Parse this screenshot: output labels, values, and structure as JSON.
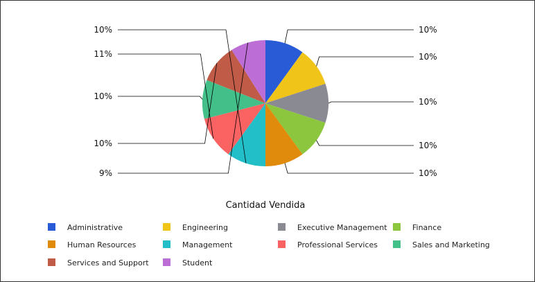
{
  "chart_data": {
    "type": "pie",
    "title": "Cantidad Vendida",
    "slices": [
      {
        "name": "Administrative",
        "value": 10,
        "label": "10%",
        "color": "#2a5bd7"
      },
      {
        "name": "Engineering",
        "value": 10,
        "label": "10%",
        "color": "#f0c419"
      },
      {
        "name": "Executive Management",
        "value": 10,
        "label": "10%",
        "color": "#8a8a93"
      },
      {
        "name": "Finance",
        "value": 10,
        "label": "10%",
        "color": "#8cc63e"
      },
      {
        "name": "Human Resources",
        "value": 10,
        "label": "10%",
        "color": "#e08b0c"
      },
      {
        "name": "Management",
        "value": 10,
        "label": "10%",
        "color": "#22bfc8"
      },
      {
        "name": "Professional Services",
        "value": 11,
        "label": "11%",
        "color": "#fb6262"
      },
      {
        "name": "Sales and Marketing",
        "value": 10,
        "label": "10%",
        "color": "#43c08a"
      },
      {
        "name": "Services and Support",
        "value": 10,
        "label": "10%",
        "color": "#c05b47"
      },
      {
        "name": "Student",
        "value": 9,
        "label": "9%",
        "color": "#bd6ed6"
      }
    ],
    "legend": {
      "position": "bottom",
      "columns": 4
    }
  }
}
